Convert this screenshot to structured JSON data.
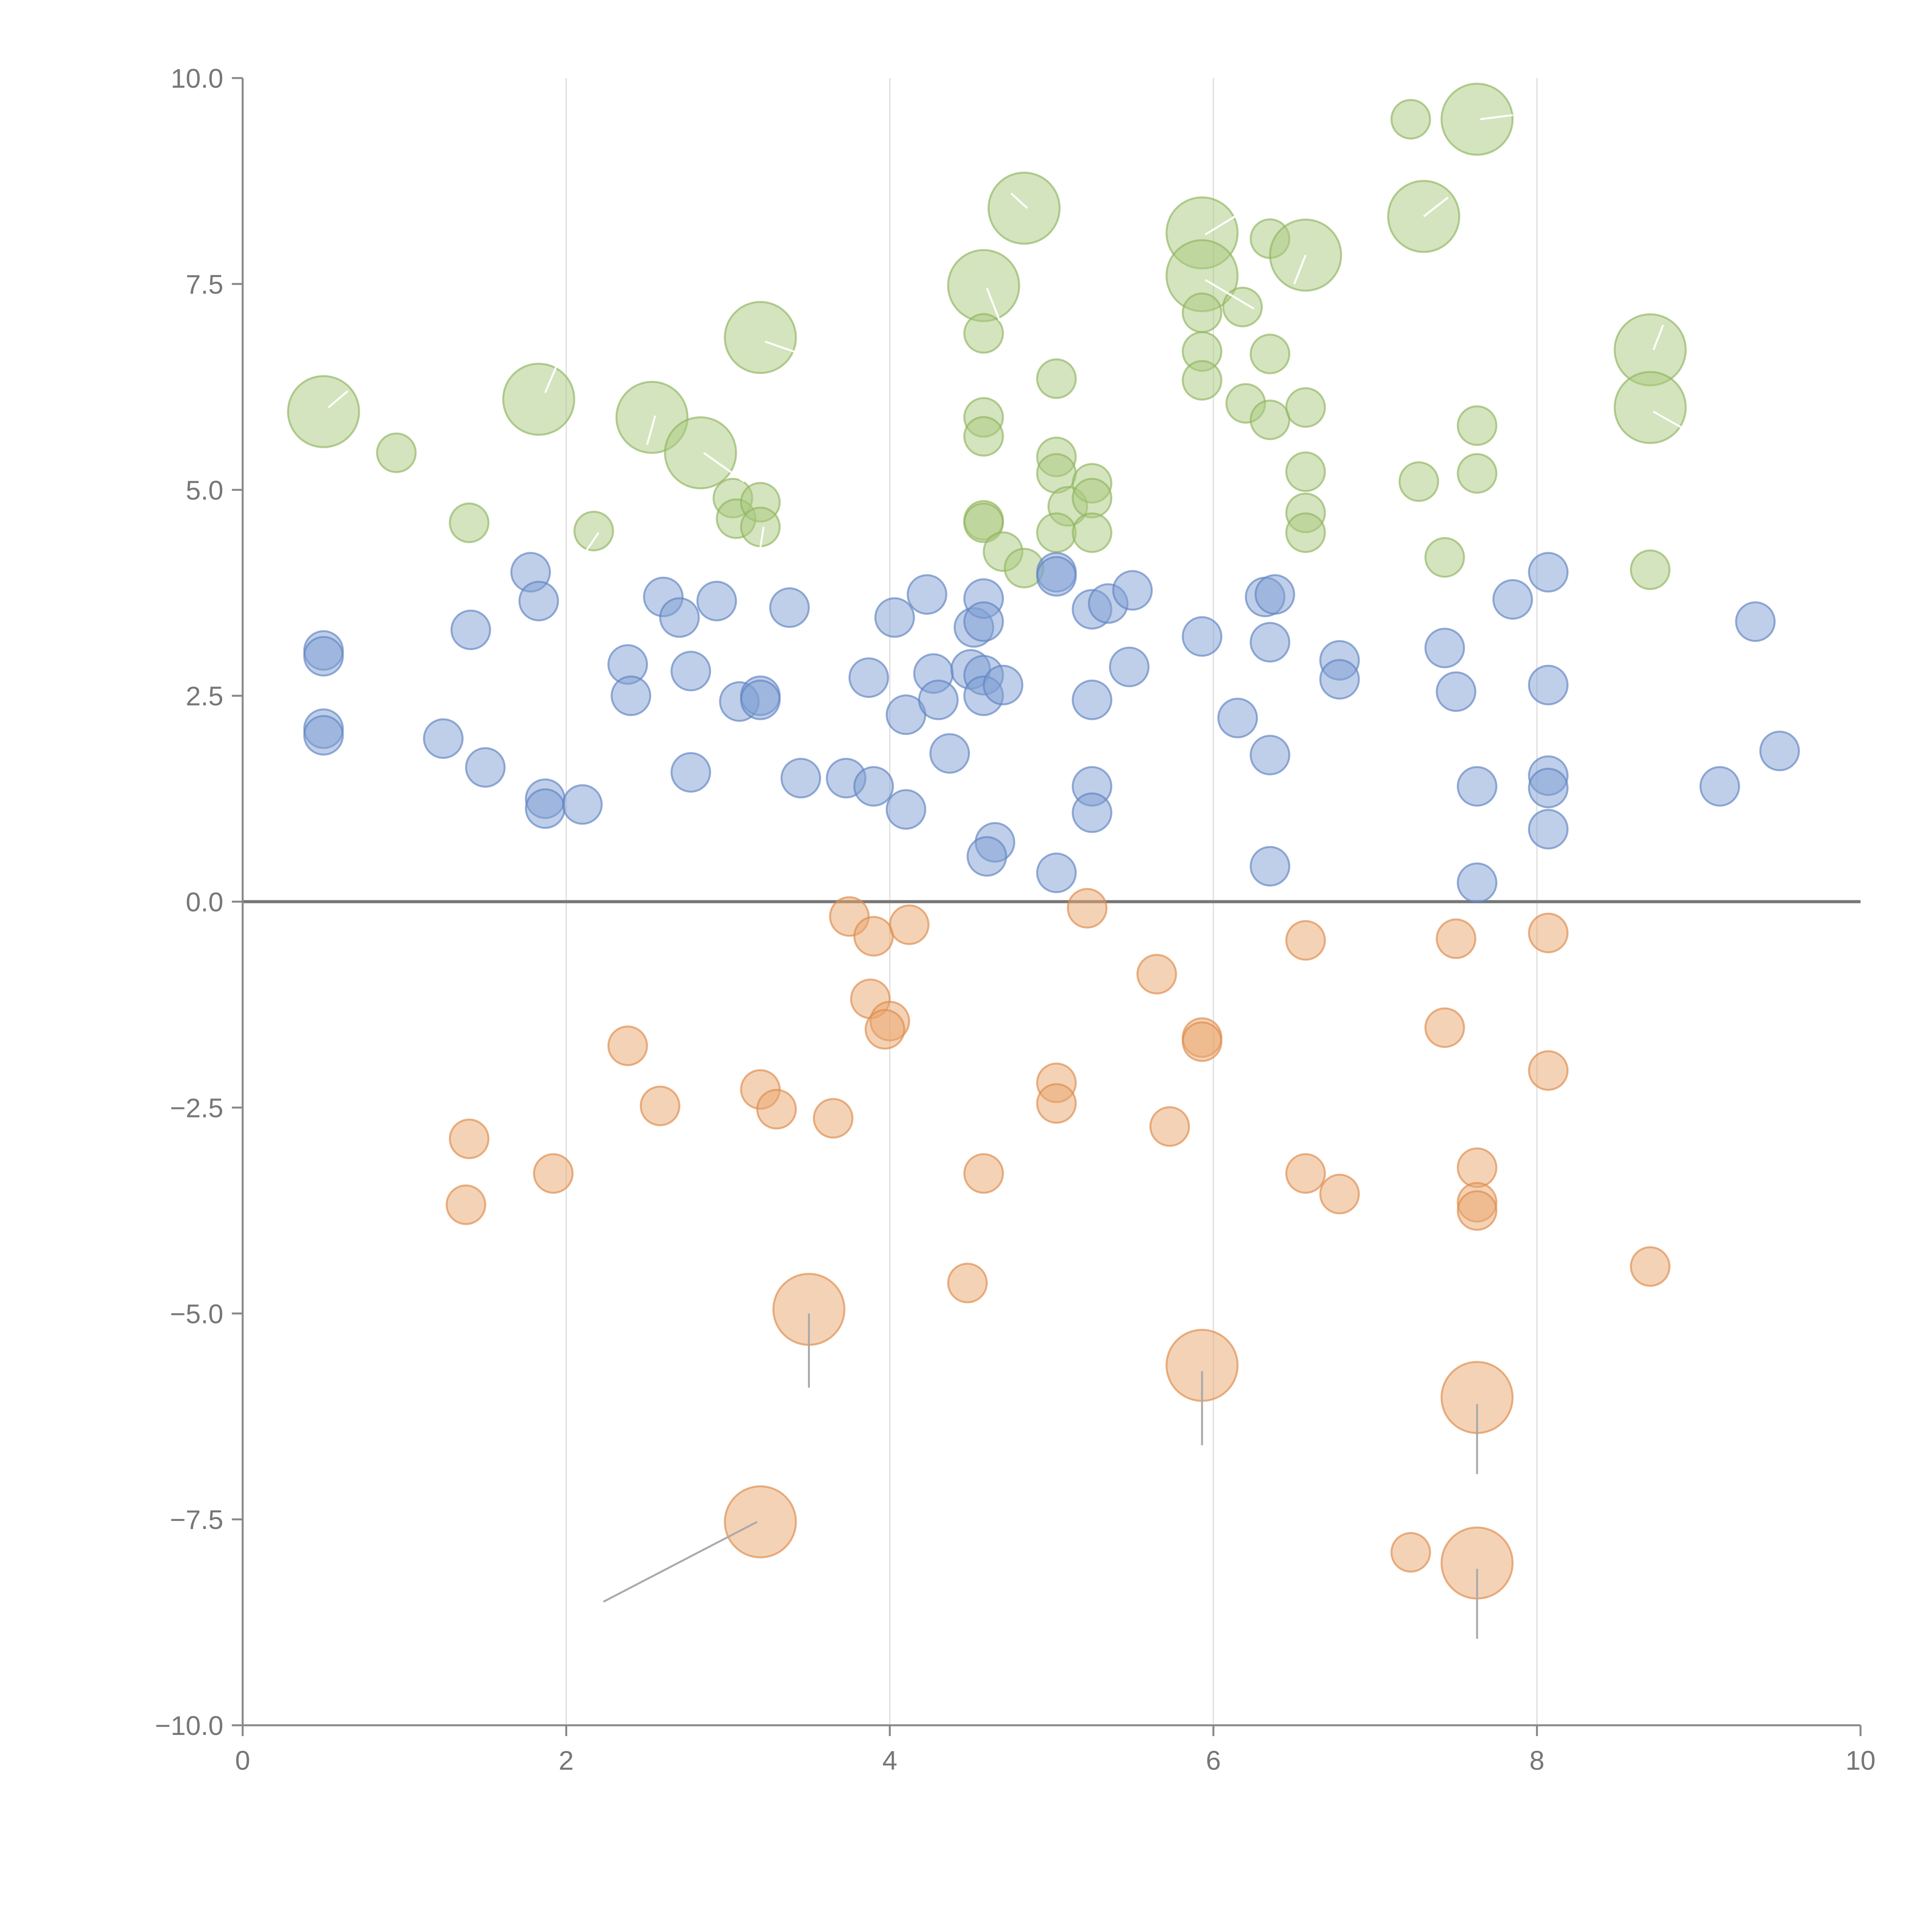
{
  "chart_data": {
    "type": "scatter",
    "title": "",
    "xlabel": "",
    "ylabel": "",
    "xlim": [
      0,
      10
    ],
    "ylim": [
      -10,
      10
    ],
    "x_ticks": [
      "0",
      "2",
      "4",
      "6",
      "8",
      "10"
    ],
    "y_ticks": [
      "−10.0",
      "−7.5",
      "−5.0",
      "−2.5",
      "0.0",
      "2.5",
      "5.0",
      "7.5",
      "10.0"
    ],
    "x_tick_values": [
      0,
      2,
      4,
      6,
      8,
      10
    ],
    "y_tick_values": [
      -10,
      -7.5,
      -5,
      -2.5,
      0,
      2.5,
      5,
      7.5,
      10
    ],
    "vertical_grid_at": [
      2,
      4,
      6,
      8
    ],
    "zero_line": true,
    "legend": "none",
    "colors": {
      "green_fill": "#a9c97e",
      "green_stroke": "#8fb35f",
      "blue_fill": "#7f9fd3",
      "blue_stroke": "#5f82c2",
      "orange_fill": "#e9a66e",
      "orange_stroke": "#dd8a4a"
    },
    "series": [
      {
        "color_key": "green",
        "points": [
          {
            "x": 0.5,
            "y": 5.95,
            "r": 2
          },
          {
            "x": 0.95,
            "y": 5.45,
            "r": 1
          },
          {
            "x": 1.4,
            "y": 4.6,
            "r": 1
          },
          {
            "x": 1.83,
            "y": 6.1,
            "r": 2
          },
          {
            "x": 2.17,
            "y": 4.5,
            "r": 1
          },
          {
            "x": 2.53,
            "y": 5.88,
            "r": 2
          },
          {
            "x": 2.83,
            "y": 5.45,
            "r": 2
          },
          {
            "x": 3.03,
            "y": 4.9,
            "r": 1
          },
          {
            "x": 3.05,
            "y": 4.65,
            "r": 1
          },
          {
            "x": 3.2,
            "y": 4.85,
            "r": 1
          },
          {
            "x": 3.2,
            "y": 4.55,
            "r": 1
          },
          {
            "x": 3.2,
            "y": 6.85,
            "r": 2
          },
          {
            "x": 4.58,
            "y": 7.48,
            "r": 2
          },
          {
            "x": 4.58,
            "y": 6.9,
            "r": 1
          },
          {
            "x": 4.58,
            "y": 5.88,
            "r": 1
          },
          {
            "x": 4.58,
            "y": 5.65,
            "r": 1
          },
          {
            "x": 4.58,
            "y": 4.63,
            "r": 1
          },
          {
            "x": 4.58,
            "y": 4.6,
            "r": 1
          },
          {
            "x": 4.7,
            "y": 4.25,
            "r": 1
          },
          {
            "x": 4.83,
            "y": 8.42,
            "r": 2
          },
          {
            "x": 4.83,
            "y": 4.05,
            "r": 1
          },
          {
            "x": 5.03,
            "y": 6.35,
            "r": 1
          },
          {
            "x": 5.03,
            "y": 5.4,
            "r": 1
          },
          {
            "x": 5.03,
            "y": 5.2,
            "r": 1
          },
          {
            "x": 5.1,
            "y": 4.8,
            "r": 1
          },
          {
            "x": 5.03,
            "y": 4.48,
            "r": 1
          },
          {
            "x": 5.25,
            "y": 5.08,
            "r": 1
          },
          {
            "x": 5.25,
            "y": 4.9,
            "r": 1
          },
          {
            "x": 5.25,
            "y": 4.48,
            "r": 1
          },
          {
            "x": 5.93,
            "y": 8.12,
            "r": 2
          },
          {
            "x": 5.93,
            "y": 7.6,
            "r": 2
          },
          {
            "x": 5.93,
            "y": 7.15,
            "r": 1
          },
          {
            "x": 5.93,
            "y": 6.68,
            "r": 1
          },
          {
            "x": 5.93,
            "y": 6.33,
            "r": 1
          },
          {
            "x": 6.18,
            "y": 7.22,
            "r": 1
          },
          {
            "x": 6.2,
            "y": 6.05,
            "r": 1
          },
          {
            "x": 6.35,
            "y": 8.05,
            "r": 1
          },
          {
            "x": 6.35,
            "y": 6.65,
            "r": 1
          },
          {
            "x": 6.35,
            "y": 5.85,
            "r": 1
          },
          {
            "x": 6.57,
            "y": 7.85,
            "r": 2
          },
          {
            "x": 6.57,
            "y": 6.0,
            "r": 1
          },
          {
            "x": 6.57,
            "y": 5.22,
            "r": 1
          },
          {
            "x": 6.57,
            "y": 4.72,
            "r": 1
          },
          {
            "x": 6.57,
            "y": 4.48,
            "r": 1
          },
          {
            "x": 7.22,
            "y": 9.5,
            "r": 1
          },
          {
            "x": 7.3,
            "y": 8.32,
            "r": 2
          },
          {
            "x": 7.27,
            "y": 5.1,
            "r": 1
          },
          {
            "x": 7.43,
            "y": 4.18,
            "r": 1
          },
          {
            "x": 7.63,
            "y": 9.5,
            "r": 2
          },
          {
            "x": 7.63,
            "y": 5.78,
            "r": 1
          },
          {
            "x": 7.63,
            "y": 5.2,
            "r": 1
          },
          {
            "x": 8.7,
            "y": 6.7,
            "r": 2
          },
          {
            "x": 8.7,
            "y": 6.0,
            "r": 2
          },
          {
            "x": 8.7,
            "y": 4.03,
            "r": 1
          }
        ]
      },
      {
        "color_key": "blue",
        "points": [
          {
            "x": 0.5,
            "y": 3.05,
            "r": 1
          },
          {
            "x": 0.5,
            "y": 2.98,
            "r": 1
          },
          {
            "x": 0.5,
            "y": 2.1,
            "r": 1
          },
          {
            "x": 0.5,
            "y": 2.02,
            "r": 1
          },
          {
            "x": 1.24,
            "y": 1.98,
            "r": 1
          },
          {
            "x": 1.41,
            "y": 3.3,
            "r": 1
          },
          {
            "x": 1.5,
            "y": 1.63,
            "r": 1
          },
          {
            "x": 1.78,
            "y": 4.0,
            "r": 1
          },
          {
            "x": 1.83,
            "y": 3.65,
            "r": 1
          },
          {
            "x": 1.87,
            "y": 1.25,
            "r": 1
          },
          {
            "x": 1.87,
            "y": 1.13,
            "r": 1
          },
          {
            "x": 2.1,
            "y": 1.18,
            "r": 1
          },
          {
            "x": 2.38,
            "y": 2.88,
            "r": 1
          },
          {
            "x": 2.4,
            "y": 2.5,
            "r": 1
          },
          {
            "x": 2.6,
            "y": 3.7,
            "r": 1
          },
          {
            "x": 2.7,
            "y": 3.45,
            "r": 1
          },
          {
            "x": 2.77,
            "y": 2.8,
            "r": 1
          },
          {
            "x": 2.77,
            "y": 1.57,
            "r": 1
          },
          {
            "x": 2.93,
            "y": 3.65,
            "r": 1
          },
          {
            "x": 3.07,
            "y": 2.43,
            "r": 1
          },
          {
            "x": 3.2,
            "y": 2.5,
            "r": 1
          },
          {
            "x": 3.2,
            "y": 2.45,
            "r": 1
          },
          {
            "x": 3.38,
            "y": 3.57,
            "r": 1
          },
          {
            "x": 3.45,
            "y": 1.5,
            "r": 1
          },
          {
            "x": 3.73,
            "y": 1.5,
            "r": 1
          },
          {
            "x": 3.87,
            "y": 2.72,
            "r": 1
          },
          {
            "x": 3.9,
            "y": 1.4,
            "r": 1
          },
          {
            "x": 4.03,
            "y": 3.45,
            "r": 1
          },
          {
            "x": 4.1,
            "y": 2.27,
            "r": 1
          },
          {
            "x": 4.1,
            "y": 1.12,
            "r": 1
          },
          {
            "x": 4.23,
            "y": 3.73,
            "r": 1
          },
          {
            "x": 4.27,
            "y": 2.77,
            "r": 1
          },
          {
            "x": 4.3,
            "y": 2.45,
            "r": 1
          },
          {
            "x": 4.37,
            "y": 1.8,
            "r": 1
          },
          {
            "x": 4.5,
            "y": 2.82,
            "r": 1
          },
          {
            "x": 4.52,
            "y": 3.33,
            "r": 1
          },
          {
            "x": 4.58,
            "y": 3.68,
            "r": 1
          },
          {
            "x": 4.58,
            "y": 3.4,
            "r": 1
          },
          {
            "x": 4.58,
            "y": 2.75,
            "r": 1
          },
          {
            "x": 4.58,
            "y": 2.5,
            "r": 1
          },
          {
            "x": 4.7,
            "y": 2.63,
            "r": 1
          },
          {
            "x": 4.65,
            "y": 0.72,
            "r": 1
          },
          {
            "x": 4.6,
            "y": 0.55,
            "r": 1
          },
          {
            "x": 5.03,
            "y": 4.0,
            "r": 1
          },
          {
            "x": 5.03,
            "y": 3.95,
            "r": 1
          },
          {
            "x": 5.03,
            "y": 0.35,
            "r": 1
          },
          {
            "x": 5.25,
            "y": 3.55,
            "r": 1
          },
          {
            "x": 5.35,
            "y": 3.62,
            "r": 1
          },
          {
            "x": 5.25,
            "y": 2.45,
            "r": 1
          },
          {
            "x": 5.25,
            "y": 1.4,
            "r": 1
          },
          {
            "x": 5.25,
            "y": 1.08,
            "r": 1
          },
          {
            "x": 5.5,
            "y": 3.78,
            "r": 1
          },
          {
            "x": 5.48,
            "y": 2.85,
            "r": 1
          },
          {
            "x": 5.93,
            "y": 3.22,
            "r": 1
          },
          {
            "x": 6.15,
            "y": 2.23,
            "r": 1
          },
          {
            "x": 6.32,
            "y": 3.7,
            "r": 1
          },
          {
            "x": 6.38,
            "y": 3.73,
            "r": 1
          },
          {
            "x": 6.35,
            "y": 3.15,
            "r": 1
          },
          {
            "x": 6.35,
            "y": 1.78,
            "r": 1
          },
          {
            "x": 6.35,
            "y": 0.43,
            "r": 1
          },
          {
            "x": 6.78,
            "y": 2.93,
            "r": 1
          },
          {
            "x": 6.78,
            "y": 2.7,
            "r": 1
          },
          {
            "x": 7.43,
            "y": 3.08,
            "r": 1
          },
          {
            "x": 7.5,
            "y": 2.55,
            "r": 1
          },
          {
            "x": 7.63,
            "y": 1.4,
            "r": 1
          },
          {
            "x": 7.63,
            "y": 0.23,
            "r": 1
          },
          {
            "x": 7.85,
            "y": 3.67,
            "r": 1
          },
          {
            "x": 8.07,
            "y": 4.0,
            "r": 1
          },
          {
            "x": 8.07,
            "y": 2.63,
            "r": 1
          },
          {
            "x": 8.07,
            "y": 1.53,
            "r": 1
          },
          {
            "x": 8.07,
            "y": 1.38,
            "r": 1
          },
          {
            "x": 8.07,
            "y": 0.88,
            "r": 1
          },
          {
            "x": 9.13,
            "y": 1.4,
            "r": 1
          },
          {
            "x": 9.35,
            "y": 3.4,
            "r": 1
          },
          {
            "x": 9.5,
            "y": 1.83,
            "r": 1
          }
        ]
      },
      {
        "color_key": "orange",
        "points": [
          {
            "x": 1.4,
            "y": -2.88,
            "r": 1
          },
          {
            "x": 1.38,
            "y": -3.68,
            "r": 1
          },
          {
            "x": 1.92,
            "y": -3.3,
            "r": 1
          },
          {
            "x": 2.38,
            "y": -1.75,
            "r": 1
          },
          {
            "x": 2.58,
            "y": -2.48,
            "r": 1
          },
          {
            "x": 3.2,
            "y": -2.28,
            "r": 1
          },
          {
            "x": 3.3,
            "y": -2.52,
            "r": 1
          },
          {
            "x": 3.65,
            "y": -2.63,
            "r": 1
          },
          {
            "x": 3.75,
            "y": -0.18,
            "r": 1
          },
          {
            "x": 3.9,
            "y": -0.42,
            "r": 1
          },
          {
            "x": 3.88,
            "y": -1.18,
            "r": 1
          },
          {
            "x": 4.0,
            "y": -1.45,
            "r": 1
          },
          {
            "x": 3.97,
            "y": -1.55,
            "r": 1
          },
          {
            "x": 4.12,
            "y": -0.28,
            "r": 1
          },
          {
            "x": 4.58,
            "y": -3.3,
            "r": 1
          },
          {
            "x": 4.48,
            "y": -4.63,
            "r": 1
          },
          {
            "x": 5.03,
            "y": -2.2,
            "r": 1
          },
          {
            "x": 5.03,
            "y": -2.45,
            "r": 1
          },
          {
            "x": 5.22,
            "y": -0.08,
            "r": 1
          },
          {
            "x": 5.65,
            "y": -0.88,
            "r": 1
          },
          {
            "x": 5.73,
            "y": -2.73,
            "r": 1
          },
          {
            "x": 5.93,
            "y": -1.65,
            "r": 1
          },
          {
            "x": 5.93,
            "y": -1.7,
            "r": 1
          },
          {
            "x": 6.57,
            "y": -0.47,
            "r": 1
          },
          {
            "x": 6.57,
            "y": -3.3,
            "r": 1
          },
          {
            "x": 6.78,
            "y": -3.55,
            "r": 1
          },
          {
            "x": 7.43,
            "y": -1.53,
            "r": 1
          },
          {
            "x": 7.5,
            "y": -0.45,
            "r": 1
          },
          {
            "x": 7.63,
            "y": -3.23,
            "r": 1
          },
          {
            "x": 7.63,
            "y": -3.65,
            "r": 1
          },
          {
            "x": 7.63,
            "y": -3.75,
            "r": 1
          },
          {
            "x": 7.22,
            "y": -7.9,
            "r": 1
          },
          {
            "x": 8.07,
            "y": -0.38,
            "r": 1
          },
          {
            "x": 8.07,
            "y": -2.05,
            "r": 1
          },
          {
            "x": 8.7,
            "y": -4.43,
            "r": 1
          },
          {
            "x": 3.5,
            "y": -4.95,
            "r": 2
          },
          {
            "x": 3.2,
            "y": -7.53,
            "r": 2
          },
          {
            "x": 5.93,
            "y": -5.63,
            "r": 2
          },
          {
            "x": 7.63,
            "y": -6.02,
            "r": 2
          },
          {
            "x": 7.63,
            "y": -8.03,
            "r": 2
          }
        ]
      }
    ],
    "leader_lines": [
      {
        "x1": 0.53,
        "y1": 6.0,
        "x2": 0.65,
        "y2": 6.2
      },
      {
        "x1": 1.87,
        "y1": 6.18,
        "x2": 1.95,
        "y2": 6.55
      },
      {
        "x1": 2.55,
        "y1": 5.9,
        "x2": 2.5,
        "y2": 5.55
      },
      {
        "x1": 2.85,
        "y1": 5.45,
        "x2": 3.1,
        "y2": 5.1
      },
      {
        "x1": 3.23,
        "y1": 6.8,
        "x2": 3.45,
        "y2": 6.65
      },
      {
        "x1": 3.22,
        "y1": 4.55,
        "x2": 3.2,
        "y2": 4.3
      },
      {
        "x1": 2.2,
        "y1": 4.48,
        "x2": 2.12,
        "y2": 4.25
      },
      {
        "x1": 4.6,
        "y1": 7.45,
        "x2": 4.68,
        "y2": 7.05
      },
      {
        "x1": 4.85,
        "y1": 8.42,
        "x2": 4.75,
        "y2": 8.6
      },
      {
        "x1": 5.95,
        "y1": 8.1,
        "x2": 6.2,
        "y2": 8.4
      },
      {
        "x1": 5.95,
        "y1": 7.55,
        "x2": 6.25,
        "y2": 7.2
      },
      {
        "x1": 6.57,
        "y1": 7.85,
        "x2": 6.5,
        "y2": 7.5
      },
      {
        "x1": 7.3,
        "y1": 8.32,
        "x2": 7.45,
        "y2": 8.55
      },
      {
        "x1": 7.65,
        "y1": 9.5,
        "x2": 7.85,
        "y2": 9.55
      },
      {
        "x1": 8.72,
        "y1": 6.7,
        "x2": 8.78,
        "y2": 7.0
      },
      {
        "x1": 8.72,
        "y1": 5.95,
        "x2": 8.9,
        "y2": 5.75
      },
      {
        "x1": 3.5,
        "y1": -5.0,
        "x2": 3.5,
        "y2": -5.9
      },
      {
        "x1": 3.18,
        "y1": -7.53,
        "x2": 2.23,
        "y2": -8.5
      },
      {
        "x1": 5.93,
        "y1": -5.7,
        "x2": 5.93,
        "y2": -6.6
      },
      {
        "x1": 7.63,
        "y1": -6.1,
        "x2": 7.63,
        "y2": -6.95
      },
      {
        "x1": 7.63,
        "y1": -8.1,
        "x2": 7.63,
        "y2": -8.95
      }
    ]
  }
}
